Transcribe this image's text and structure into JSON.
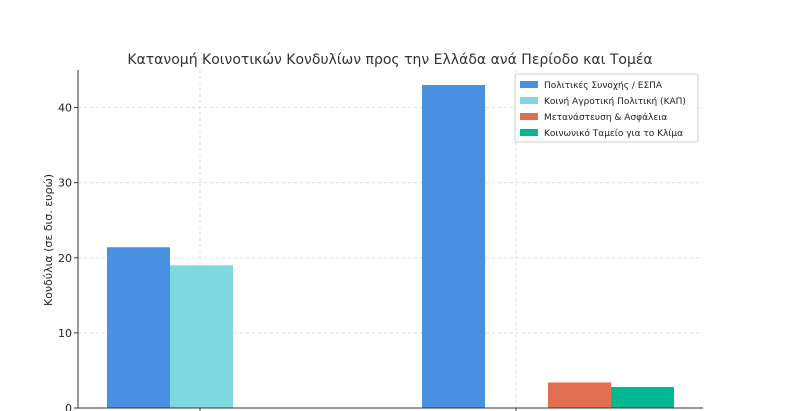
{
  "chart_data": {
    "type": "bar",
    "title": "Κατανομή Κοινοτικών Κονδυλίων προς την Ελλάδα ανά Περίοδο και Τομέα",
    "xlabel": "",
    "ylabel": "Κονδύλια (σε δισ. ευρώ)",
    "ylim": [
      0,
      45
    ],
    "yticks": [
      0,
      10,
      20,
      30,
      40
    ],
    "grid": true,
    "legend_position": "top-right",
    "categories_visible": false,
    "series": [
      {
        "name": "Πολιτικές Συνοχής / ΕΣΠΑ",
        "color": "#4a90e2",
        "values": [
          21.4,
          43.0
        ]
      },
      {
        "name": "Κοινή Αγροτική Πολιτική (ΚΑΠ)",
        "color": "#7fd8e0",
        "values": [
          19.0,
          null
        ]
      },
      {
        "name": "Μετανάστευση & Ασφάλεια",
        "color": "#e27050",
        "values": [
          null,
          3.4
        ]
      },
      {
        "name": "Κοινωνικό Ταμείο για το Κλίμα",
        "color": "#00b894",
        "values": [
          null,
          2.8
        ]
      }
    ]
  }
}
